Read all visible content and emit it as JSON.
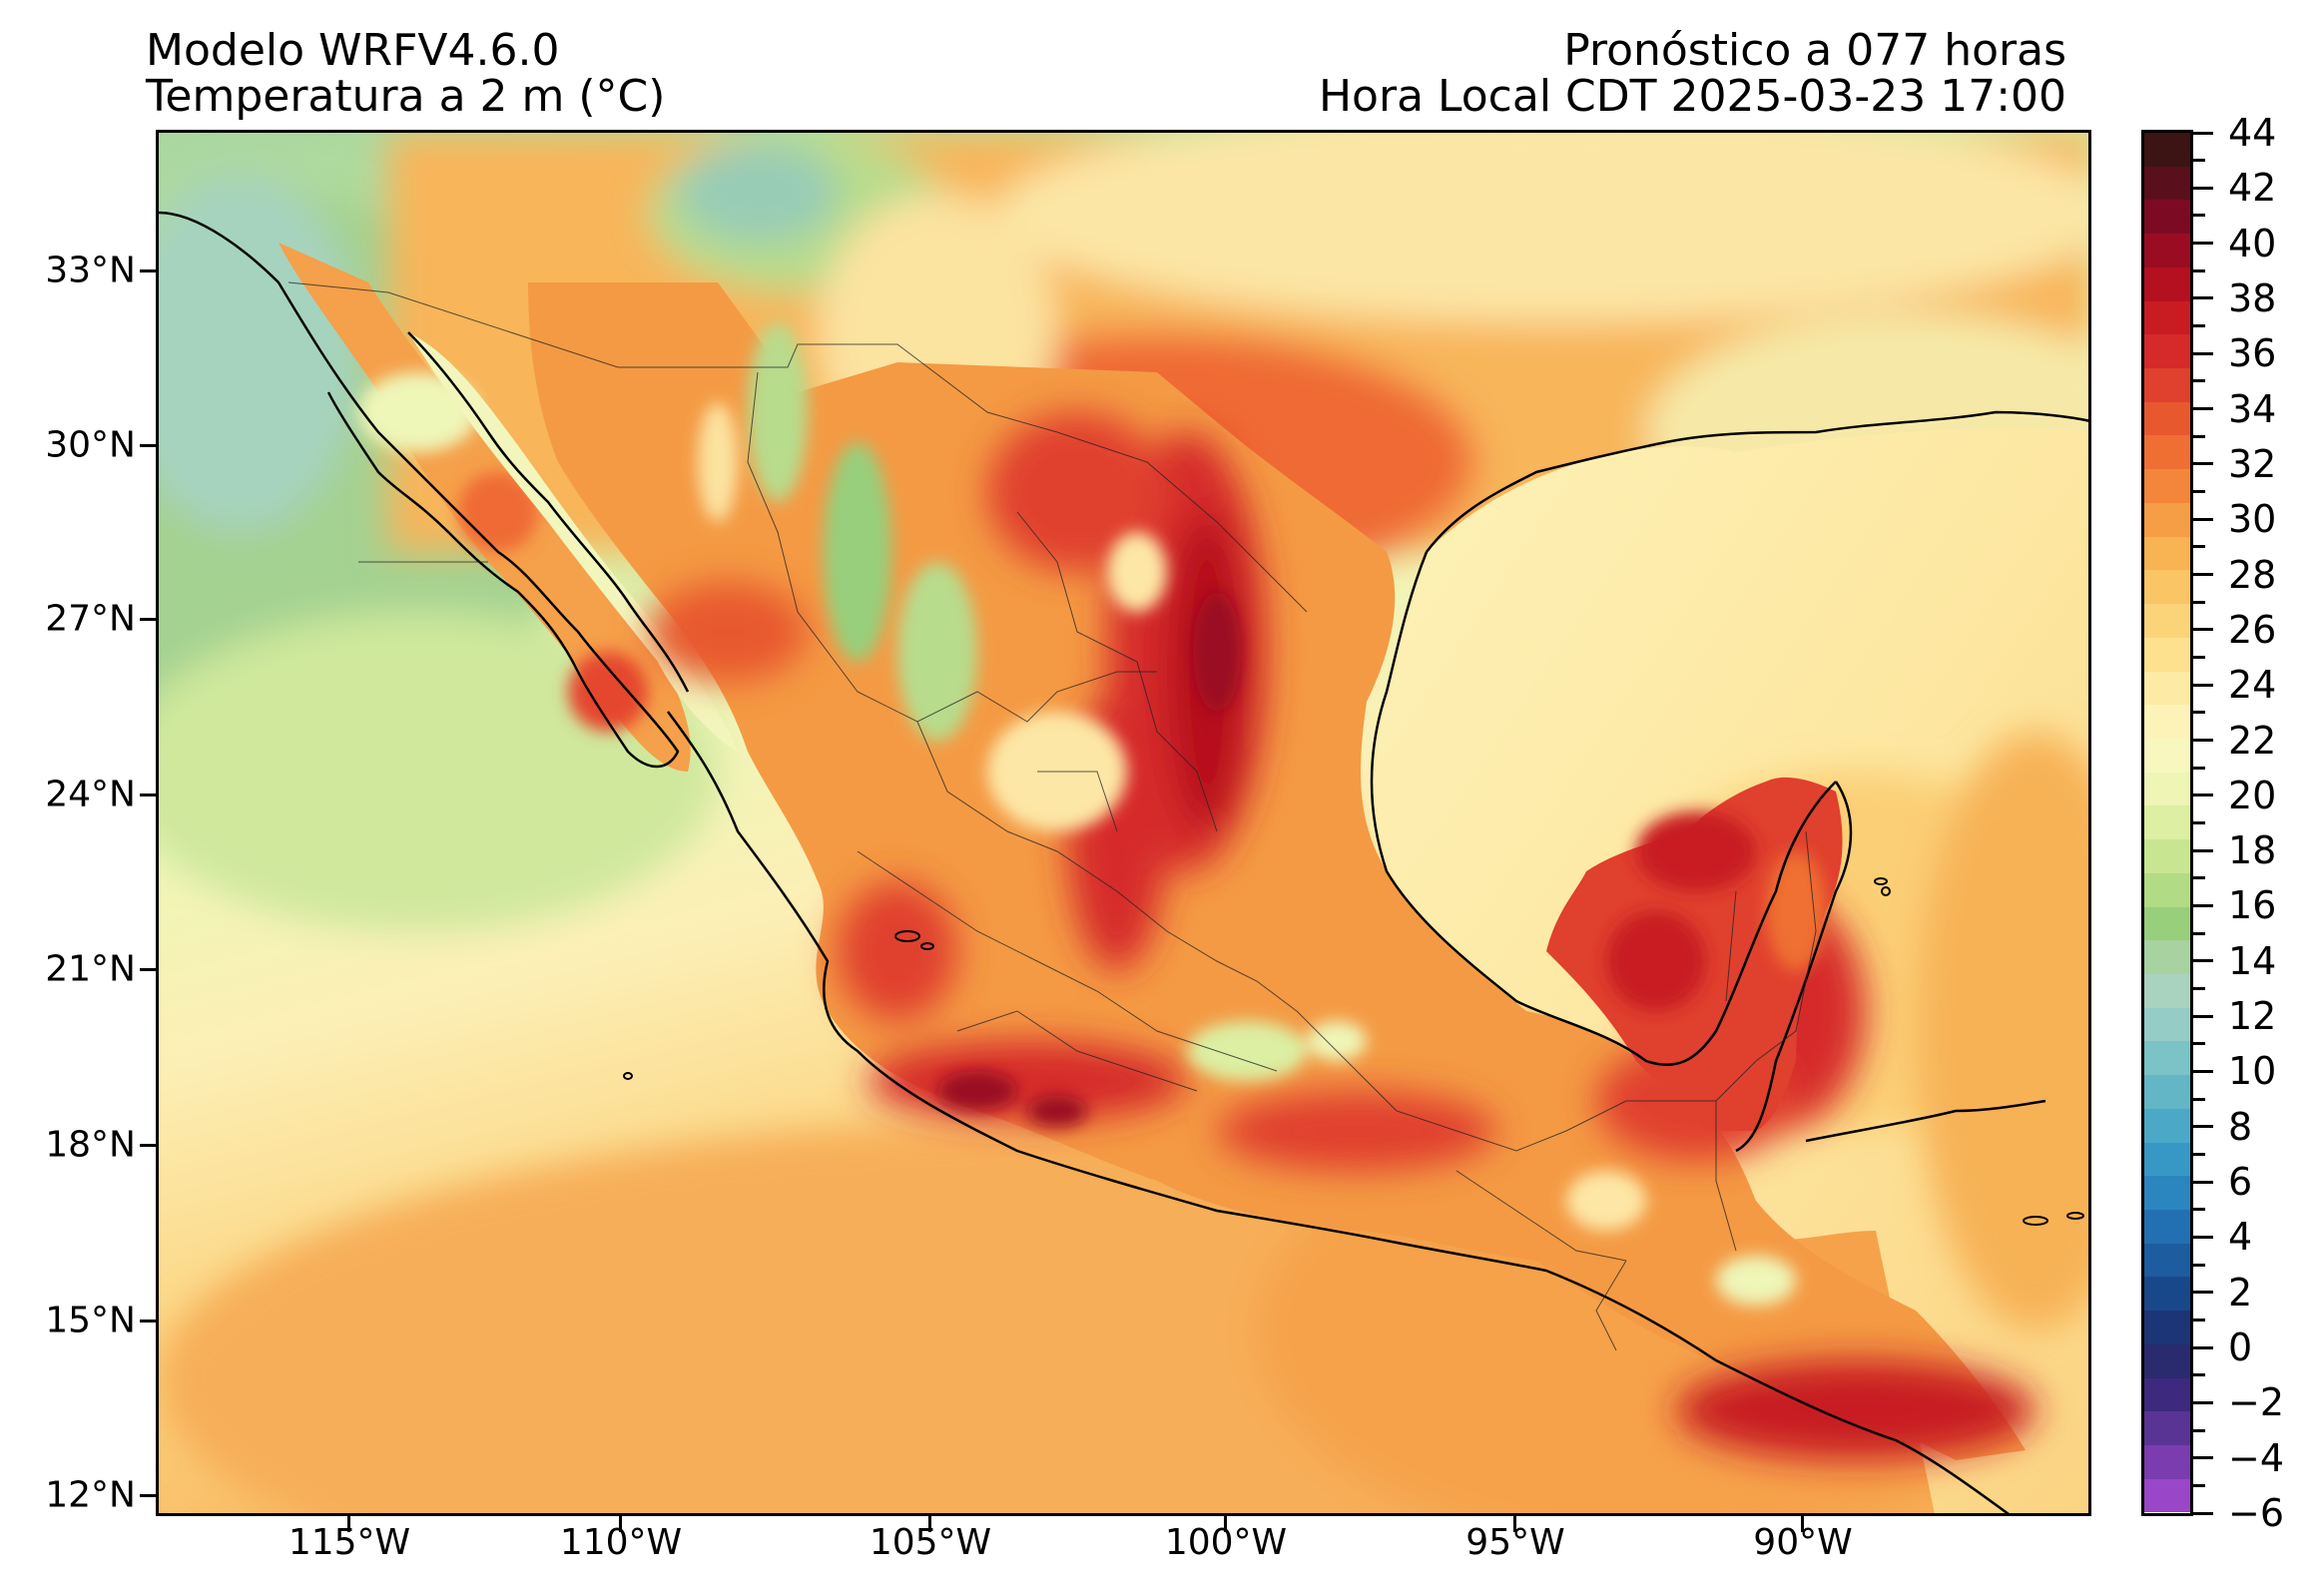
{
  "header": {
    "model": "Modelo WRFV4.6.0",
    "variable": "Temperatura a 2 m (°C)",
    "forecast": "Pronóstico a 077 horas",
    "valid_time": "Hora Local CDT 2025-03-23 17:00"
  },
  "map": {
    "lat_labels": [
      "33°N",
      "30°N",
      "27°N",
      "24°N",
      "21°N",
      "18°N",
      "15°N",
      "12°N"
    ],
    "lon_labels": [
      "115°W",
      "110°W",
      "105°W",
      "100°W",
      "95°W",
      "90°W"
    ]
  },
  "colorbar": {
    "ticks": [
      "44",
      "42",
      "40",
      "38",
      "36",
      "34",
      "32",
      "30",
      "28",
      "26",
      "24",
      "22",
      "20",
      "18",
      "16",
      "14",
      "12",
      "10",
      "8",
      "6",
      "4",
      "2",
      "0",
      "−2",
      "−4",
      "−6"
    ],
    "colors_top_to_bottom": [
      "#3c1414",
      "#5a0f1c",
      "#7c0a22",
      "#9a0c22",
      "#b5101f",
      "#c81c22",
      "#d6292a",
      "#e0402e",
      "#e8582f",
      "#ef6f33",
      "#f3863a",
      "#f69e45",
      "#f8b352",
      "#fac564",
      "#fbd47a",
      "#fde18e",
      "#fdeba5",
      "#fdf3b9",
      "#f9f7c0",
      "#eef5b5",
      "#dcefa2",
      "#c8e692",
      "#b1db85",
      "#97cf7b",
      "#a8d2a0",
      "#a9d3be",
      "#96ccc6",
      "#7bc3c6",
      "#62b6c5",
      "#4ba8c7",
      "#3898c5",
      "#2b85be",
      "#2270b1",
      "#1c5c9f",
      "#19488a",
      "#1c3576",
      "#2a2a6e",
      "#3d2a7e",
      "#5a3495",
      "#7a3cae",
      "#9a46c8"
    ]
  }
}
